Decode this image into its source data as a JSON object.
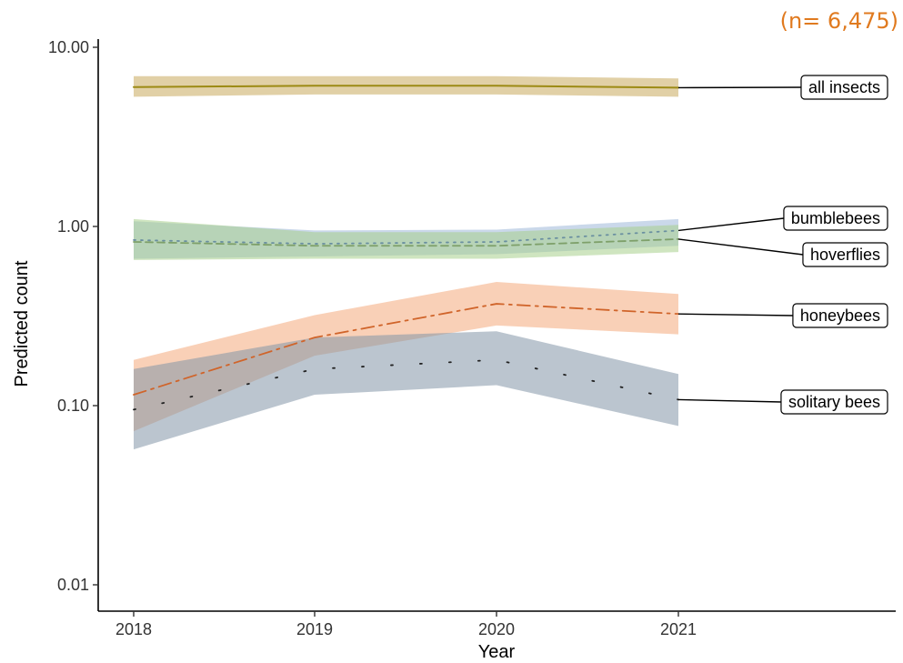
{
  "sample_size_label": "(n= 6,475)",
  "colors": {
    "sample_size": "#e07a1f",
    "axis": "#000000"
  },
  "chart_data": {
    "type": "line",
    "xlabel": "Year",
    "ylabel": "Predicted count",
    "x": [
      2018,
      2019,
      2020,
      2021
    ],
    "x_tick_labels": [
      "2018",
      "2019",
      "2020",
      "2021"
    ],
    "y_scale": "log10",
    "ylim": [
      0.01,
      10
    ],
    "y_ticks": [
      0.01,
      0.1,
      1,
      10
    ],
    "y_tick_labels": [
      "0.01",
      "0.10",
      "1.00",
      "10.00"
    ],
    "grid": false,
    "legend": "direct labels at right",
    "series": [
      {
        "name": "all insects",
        "values": [
          6.0,
          6.1,
          6.1,
          5.95
        ],
        "lower": [
          5.3,
          5.45,
          5.45,
          5.3
        ],
        "upper": [
          6.9,
          6.9,
          6.9,
          6.7
        ],
        "line_color": "#9c8a14",
        "band_color": "#c8a95c",
        "line_style": "solid"
      },
      {
        "name": "bumblebees",
        "values": [
          0.84,
          0.8,
          0.82,
          0.95
        ],
        "lower": [
          0.66,
          0.68,
          0.7,
          0.78
        ],
        "upper": [
          1.07,
          0.95,
          0.96,
          1.1
        ],
        "line_color": "#6a8fa0",
        "band_color": "#9fb8d8",
        "line_style": "dotted"
      },
      {
        "name": "hoverflies",
        "values": [
          0.82,
          0.78,
          0.78,
          0.85
        ],
        "lower": [
          0.65,
          0.66,
          0.66,
          0.72
        ],
        "upper": [
          1.1,
          0.93,
          0.93,
          1.02
        ],
        "line_color": "#7ea06a",
        "band_color": "#a8cf8c",
        "line_style": "dashed"
      },
      {
        "name": "honeybees",
        "values": [
          0.115,
          0.24,
          0.37,
          0.325
        ],
        "lower": [
          0.072,
          0.19,
          0.28,
          0.25
        ],
        "upper": [
          0.18,
          0.32,
          0.49,
          0.42
        ],
        "line_color": "#d0642a",
        "band_color": "#f4a97c",
        "line_style": "dashdot"
      },
      {
        "name": "solitary bees",
        "values": [
          0.095,
          0.16,
          0.18,
          0.108
        ],
        "lower": [
          0.057,
          0.115,
          0.13,
          0.077
        ],
        "upper": [
          0.16,
          0.24,
          0.26,
          0.15
        ],
        "line_color": "#222222",
        "band_color": "#8496a8",
        "line_style": "dotted-sparse"
      }
    ]
  }
}
